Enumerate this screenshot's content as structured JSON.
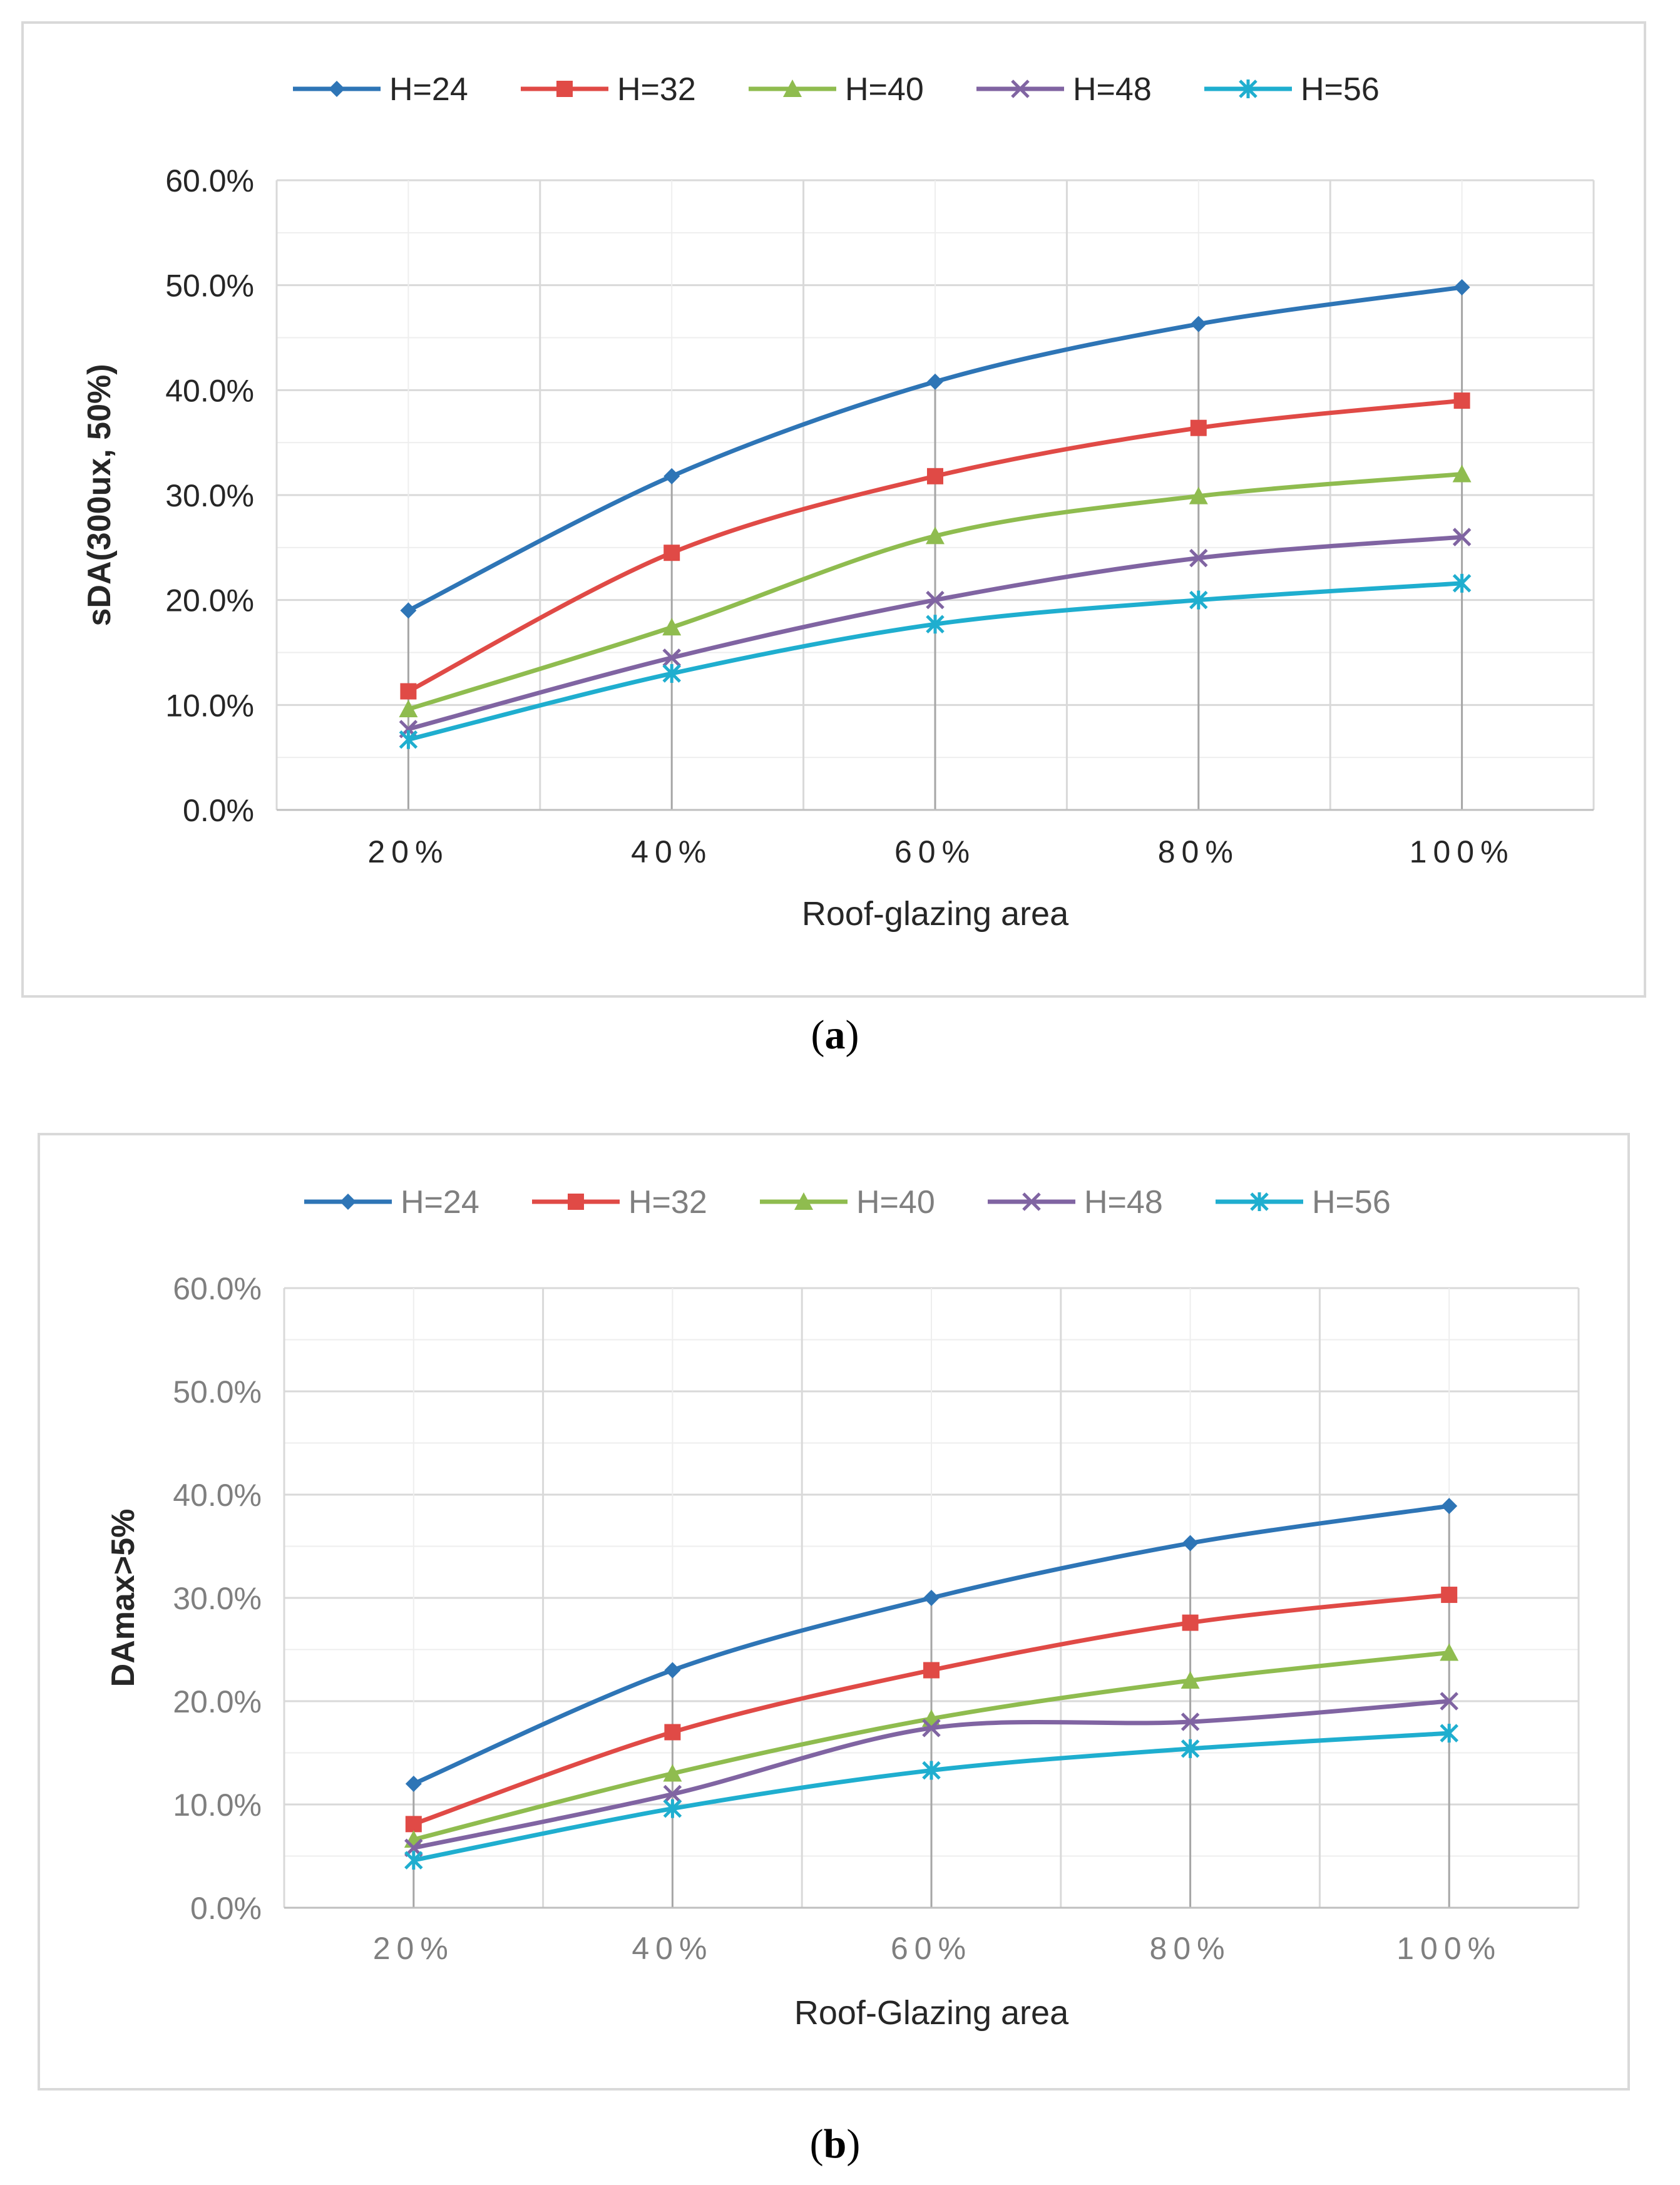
{
  "chart_data": [
    {
      "id": "a",
      "type": "line",
      "categories": [
        "20%",
        "40%",
        "60%",
        "80%",
        "100%"
      ],
      "xlabel": "Roof-glazing area",
      "ylabel": "sDA(300ux, 50%)",
      "ylim": [
        0,
        60
      ],
      "yticks": [
        "0.0%",
        "10.0%",
        "20.0%",
        "30.0%",
        "40.0%",
        "50.0%",
        "60.0%"
      ],
      "grid": true,
      "legend": "top",
      "caption_letter": "a",
      "series": [
        {
          "name": "H=24",
          "color": "#2e75b6",
          "marker": "diamond",
          "values": [
            19.0,
            31.8,
            40.8,
            46.3,
            49.8
          ]
        },
        {
          "name": "H=32",
          "color": "#e04a46",
          "marker": "square",
          "values": [
            11.3,
            24.5,
            31.8,
            36.4,
            39.0
          ]
        },
        {
          "name": "H=40",
          "color": "#8fbc4f",
          "marker": "triangle",
          "values": [
            9.6,
            17.4,
            26.1,
            29.9,
            32.0
          ]
        },
        {
          "name": "H=48",
          "color": "#8064a2",
          "marker": "x",
          "values": [
            7.7,
            14.5,
            20.0,
            24.0,
            26.0
          ]
        },
        {
          "name": "H=56",
          "color": "#1faecf",
          "marker": "star",
          "values": [
            6.7,
            13.0,
            17.7,
            20.0,
            21.6
          ]
        }
      ]
    },
    {
      "id": "b",
      "type": "line",
      "categories": [
        "20%",
        "40%",
        "60%",
        "80%",
        "100%"
      ],
      "xlabel": "Roof-Glazing area",
      "ylabel": "DAmax>5%",
      "ylim": [
        0,
        60
      ],
      "yticks": [
        "0.0%",
        "10.0%",
        "20.0%",
        "30.0%",
        "40.0%",
        "50.0%",
        "60.0%"
      ],
      "grid": true,
      "legend": "top",
      "caption_letter": "b",
      "series": [
        {
          "name": "H=24",
          "color": "#2e75b6",
          "marker": "diamond",
          "values": [
            12.0,
            23.0,
            30.0,
            35.3,
            38.9
          ]
        },
        {
          "name": "H=32",
          "color": "#e04a46",
          "marker": "square",
          "values": [
            8.1,
            17.0,
            23.0,
            27.6,
            30.3
          ]
        },
        {
          "name": "H=40",
          "color": "#8fbc4f",
          "marker": "triangle",
          "values": [
            6.6,
            13.0,
            18.3,
            22.0,
            24.7
          ]
        },
        {
          "name": "H=48",
          "color": "#8064a2",
          "marker": "x",
          "values": [
            5.8,
            11.0,
            17.4,
            18.0,
            20.0
          ]
        },
        {
          "name": "H=56",
          "color": "#1faecf",
          "marker": "star",
          "values": [
            4.6,
            9.6,
            13.3,
            15.4,
            16.9
          ]
        }
      ]
    }
  ]
}
